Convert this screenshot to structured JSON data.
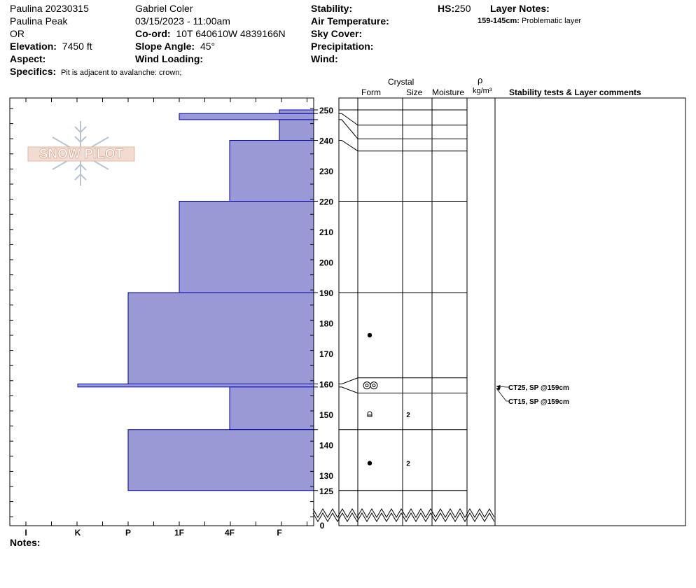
{
  "header": {
    "pit_name": "Paulina 20230315",
    "location": "Paulina Peak",
    "state": "OR",
    "elevation_label": "Elevation:",
    "elevation_value": "7450 ft",
    "aspect_label": "Aspect:",
    "aspect_value": "",
    "specifics_label": "Specifics:",
    "specifics_value": "Pit is adjacent to avalanche: crown;",
    "observer": "Gabriel Coler",
    "datetime": "03/15/2023 - 11:00am",
    "coord_label": "Co-ord:",
    "coord_value": "10T 640610W 4839166N",
    "slope_label": "Slope Angle:",
    "slope_value": "45°",
    "wind_loading_label": "Wind Loading:",
    "wind_loading_value": "",
    "stability_label": "Stability:",
    "air_temp_label": "Air Temperature:",
    "sky_cover_label": "Sky Cover:",
    "precip_label": "Precipitation:",
    "wind_label": "Wind:",
    "hs_label": "HS:",
    "hs_value": "250",
    "layer_notes_label": "Layer Notes:",
    "layer_note_range": "159-145cm:",
    "layer_note_text": "Problematic layer"
  },
  "watermark": {
    "text": "SNOW PILOT"
  },
  "columns": {
    "crystal": "Crystal",
    "form": "Form",
    "size": "Size",
    "moisture": "Moisture",
    "rho": "ρ",
    "density_unit": "kg/m³",
    "stability": "Stability tests & Layer comments"
  },
  "notes_label": "Notes:",
  "chart_data": {
    "type": "hardness_profile",
    "y_unit": "cm",
    "ylim": [
      125,
      252
    ],
    "y_ticks": [
      250,
      240,
      230,
      220,
      210,
      200,
      190,
      180,
      170,
      160,
      150,
      140,
      130,
      125
    ],
    "y_zero_label": "0",
    "x_categories": [
      "I",
      "K",
      "P",
      "1F",
      "4F",
      "F"
    ],
    "hardness_layers": [
      {
        "top": 250,
        "bottom": 248.8,
        "hardness": "F"
      },
      {
        "top": 248.8,
        "bottom": 246.8,
        "hardness": "1F"
      },
      {
        "top": 246.8,
        "bottom": 240,
        "hardness": "F"
      },
      {
        "top": 240,
        "bottom": 220,
        "hardness": "4F"
      },
      {
        "top": 220,
        "bottom": 190,
        "hardness": "1F"
      },
      {
        "top": 190,
        "bottom": 160,
        "hardness": "P"
      },
      {
        "top": 160,
        "bottom": 159,
        "hardness": "K"
      },
      {
        "top": 159,
        "bottom": 145,
        "hardness": "4F"
      },
      {
        "top": 145,
        "bottom": 125,
        "hardness": "P"
      }
    ],
    "layer_boundaries": [
      250,
      248.8,
      246.8,
      240,
      220,
      190,
      160,
      159,
      145,
      125
    ],
    "layer_symbols": [
      {
        "depth": 176,
        "form": "rounded-grains",
        "size": ""
      },
      {
        "depth": 159.5,
        "form": "melt-forms",
        "size": ""
      },
      {
        "depth": 150,
        "form": "faceted-rounded",
        "size": "2"
      },
      {
        "depth": 134,
        "form": "rounded-grains",
        "size": "2"
      }
    ],
    "stability_tests": [
      {
        "label": "CT25, SP @159cm",
        "depth": 159
      },
      {
        "label": "CT15, SP @159cm",
        "depth": 159
      }
    ]
  }
}
